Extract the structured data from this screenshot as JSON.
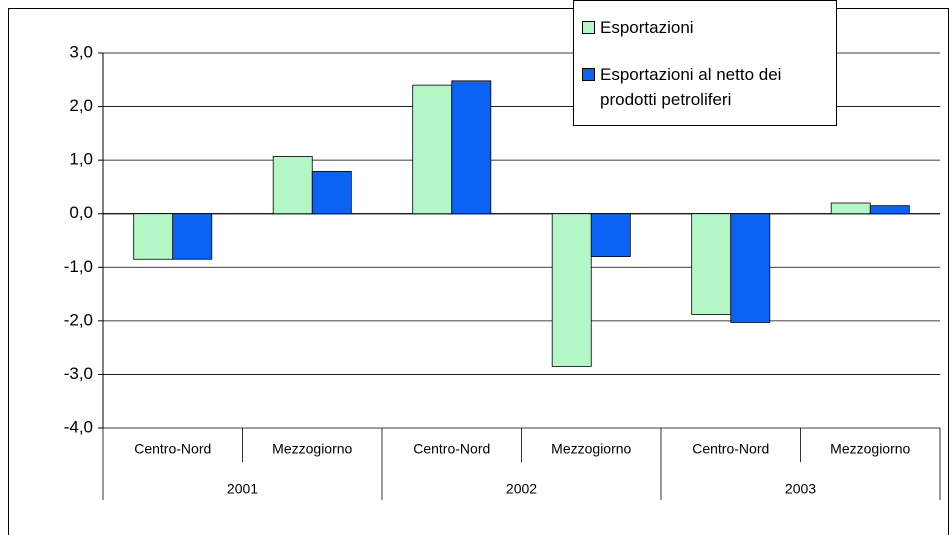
{
  "chart_data": {
    "type": "bar",
    "categories": [
      "Centro-Nord",
      "Mezzogiorno",
      "Centro-Nord",
      "Mezzogiorno",
      "Centro-Nord",
      "Mezzogiorno"
    ],
    "groups": [
      "2001",
      "2002",
      "2003"
    ],
    "series": [
      {
        "name": "Esportazioni",
        "color": "#b3f7c6",
        "values": [
          -0.85,
          1.07,
          2.4,
          -2.85,
          -1.88,
          0.2
        ]
      },
      {
        "name": "Esportazioni al netto dei prodotti petroliferi",
        "color": "#0a63f5",
        "values": [
          -0.85,
          0.79,
          2.48,
          -0.8,
          -2.03,
          0.15
        ]
      }
    ],
    "ylim": [
      -4,
      3
    ],
    "yticks": [
      {
        "value": -4,
        "label": "-4,0"
      },
      {
        "value": -3,
        "label": "-3,0"
      },
      {
        "value": -2,
        "label": "-2,0"
      },
      {
        "value": -1,
        "label": "-1,0"
      },
      {
        "value": 0,
        "label": "0,0"
      },
      {
        "value": 1,
        "label": "1,0"
      },
      {
        "value": 2,
        "label": "2,0"
      },
      {
        "value": 3,
        "label": "3,0"
      }
    ],
    "grid": true,
    "legend": "top-right"
  }
}
